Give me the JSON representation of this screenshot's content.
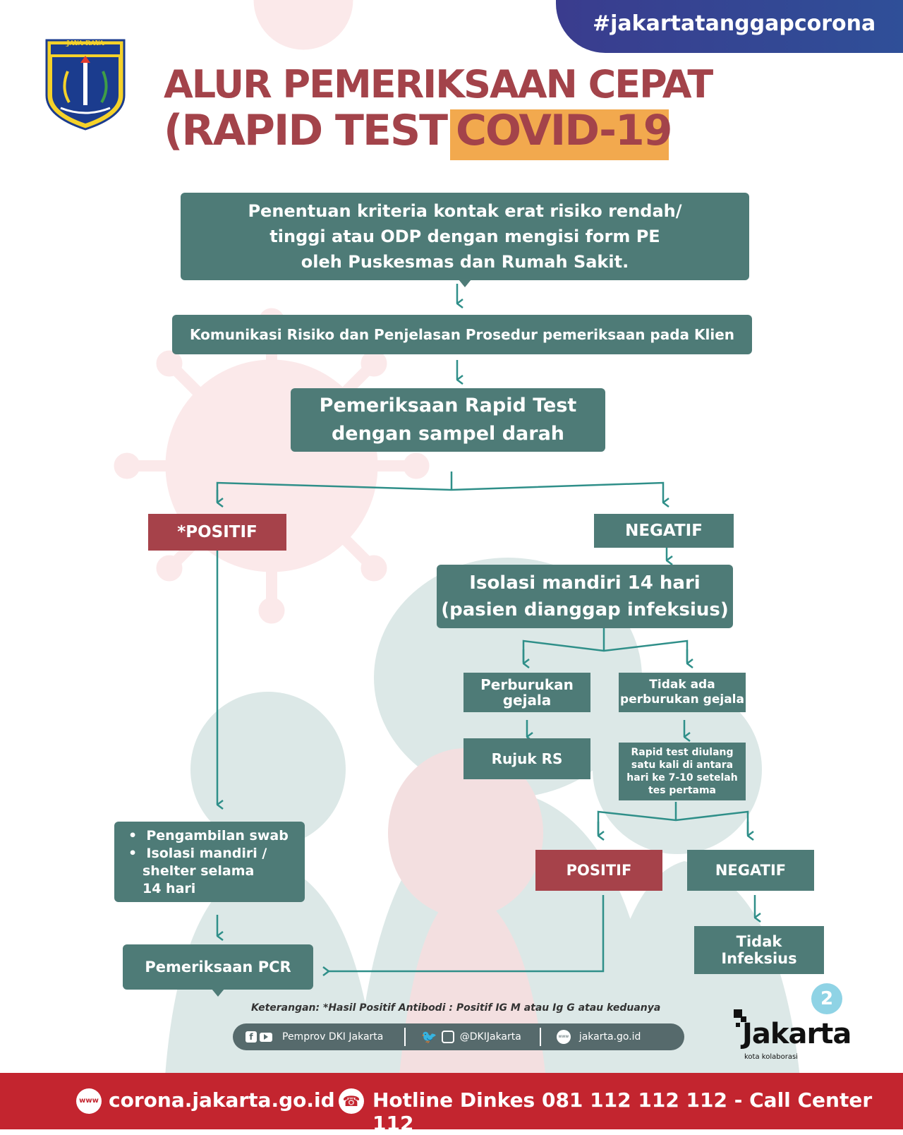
{
  "hashtag": "#jakartatanggapcorona",
  "logo": {
    "label": "JAYA RAYA"
  },
  "title": {
    "line1": "ALUR PEMERIKSAAN CEPAT",
    "line2": "(RAPID TEST)",
    "highlight": "COVID-19"
  },
  "flow": {
    "step1": [
      "Penentuan kriteria kontak erat risiko rendah/",
      "tinggi atau ODP dengan mengisi form PE",
      "oleh Puskesmas dan Rumah Sakit."
    ],
    "step2": "Komunikasi Risiko dan Penjelasan Prosedur pemeriksaan pada Klien",
    "step3": [
      "Pemeriksaan Rapid Test",
      "dengan sampel darah"
    ],
    "positive": "*POSITIF",
    "negative": "NEGATIF",
    "isolation": [
      "Isolasi mandiri 14 hari",
      "(pasien dianggap infeksius)"
    ],
    "worsening": [
      "Perburukan",
      "gejala"
    ],
    "no_worsening": [
      "Tidak ada",
      "perburukan gejala"
    ],
    "referral": "Rujuk RS",
    "retest": [
      "Rapid test diulang",
      "satu kali di antara",
      "hari ke 7-10 setelah",
      "tes pertama"
    ],
    "swab": [
      "Pengambilan swab",
      "Isolasi mandiri /",
      "shelter selama",
      "14 hari"
    ],
    "pcr": "Pemeriksaan PCR",
    "retest_positive": "POSITIF",
    "retest_negative": "NEGATIF",
    "not_infectious": [
      "Tidak",
      "Infeksius"
    ]
  },
  "note": "Keterangan: *Hasil Positif Antibodi : Positif IG M atau Ig G atau keduanya",
  "social": {
    "facebook_youtube": "Pemprov DKI Jakarta",
    "twitter_instagram": "@DKIJakarta",
    "web": "jakarta.go.id",
    "www_badge": "www"
  },
  "page_number": "2",
  "brand": {
    "name": "Jakarta",
    "tagline": "kota kolaborasi"
  },
  "footer": {
    "www_badge": "www",
    "site": "corona.jakarta.go.id -",
    "hotline": "Hotline Dinkes 081 112 112 112 - Call Center 112"
  },
  "colors": {
    "teal": "#4e7b77",
    "red": "#a6424a",
    "title": "#a3434a",
    "highlight": "#f2a94e",
    "footer": "#c3252f",
    "hashtag_bg": "#3a3c8e"
  }
}
